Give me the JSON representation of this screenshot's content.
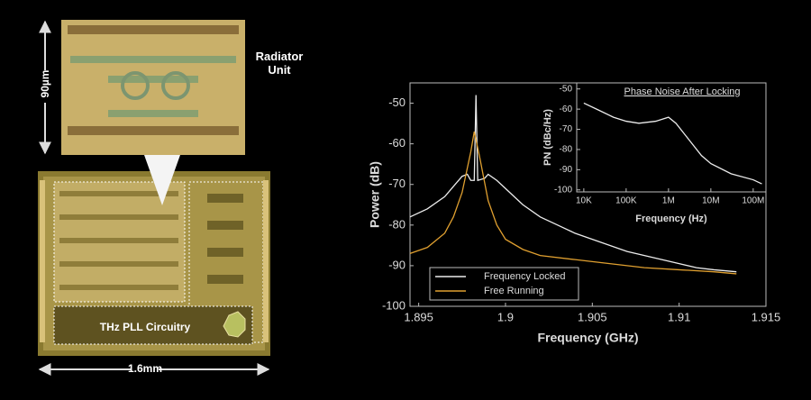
{
  "image_labels": {
    "height": "90µm",
    "radiator": "Radiator Unit",
    "pll": "THz PLL Circuitry",
    "width": "1.6mm"
  },
  "chart_data": [
    {
      "type": "line",
      "x_label": "Frequency (GHz)",
      "y_label": "Power (dB)",
      "xlim": [
        1.8945,
        1.915
      ],
      "ylim": [
        -100,
        -45
      ],
      "xticks": [
        1.895,
        1.9,
        1.905,
        1.91,
        1.915
      ],
      "yticks": [
        -100,
        -90,
        -80,
        -70,
        -60,
        -50
      ],
      "legend": "lower left",
      "series": [
        {
          "name": "Frequency Locked",
          "color": "#ececec",
          "x": [
            1.8945,
            1.8955,
            1.8965,
            1.897,
            1.8975,
            1.8978,
            1.898,
            1.8982,
            1.8983,
            1.8984,
            1.8988,
            1.899,
            1.8995,
            1.9,
            1.901,
            1.902,
            1.903,
            1.904,
            1.905,
            1.906,
            1.907,
            1.908,
            1.909,
            1.91,
            1.911,
            1.912,
            1.9133
          ],
          "values": [
            -78,
            -76,
            -73,
            -70.5,
            -68,
            -67.5,
            -69,
            -69,
            -48,
            -69,
            -68.5,
            -67.5,
            -69,
            -71,
            -75,
            -78,
            -80,
            -82,
            -83.5,
            -85,
            -86.5,
            -87.5,
            -88.5,
            -89.5,
            -90.5,
            -91,
            -91.5
          ]
        },
        {
          "name": "Free Running",
          "color": "#e0a030",
          "x": [
            1.8945,
            1.8955,
            1.8965,
            1.897,
            1.8975,
            1.898,
            1.8982,
            1.8985,
            1.899,
            1.8995,
            1.9,
            1.901,
            1.902,
            1.904,
            1.906,
            1.908,
            1.91,
            1.912,
            1.9133
          ],
          "values": [
            -87,
            -85.5,
            -82,
            -78,
            -72,
            -62,
            -57,
            -63,
            -74,
            -80,
            -83.5,
            -86,
            -87.5,
            -88.5,
            -89.5,
            -90.5,
            -91,
            -91.5,
            -92
          ]
        }
      ]
    },
    {
      "type": "line",
      "title": "Phase Noise After Locking",
      "x_label": "Frequency (Hz)",
      "y_label": "PN (dBc/Hz)",
      "xscale": "log",
      "xlim": [
        6800,
        200000000
      ],
      "ylim": [
        -101,
        -47
      ],
      "xticks": [
        {
          "value": 10000,
          "label": "10K"
        },
        {
          "value": 100000,
          "label": "100K"
        },
        {
          "value": 1000000,
          "label": "1M"
        },
        {
          "value": 10000000,
          "label": "10M"
        },
        {
          "value": 100000000,
          "label": "100M"
        }
      ],
      "yticks": [
        -100,
        -90,
        -80,
        -70,
        -60,
        -50
      ],
      "series": [
        {
          "name": "Phase Noise",
          "color": "#ececec",
          "x": [
            10000,
            20000,
            50000,
            100000,
            200000,
            500000,
            1000000,
            1500000,
            3000000,
            6000000,
            10000000,
            30000000,
            100000000,
            160000000
          ],
          "values": [
            -57,
            -60,
            -64,
            -66,
            -67,
            -66,
            -64,
            -67,
            -75,
            -83,
            -87,
            -92,
            -95,
            -97
          ]
        }
      ]
    }
  ]
}
